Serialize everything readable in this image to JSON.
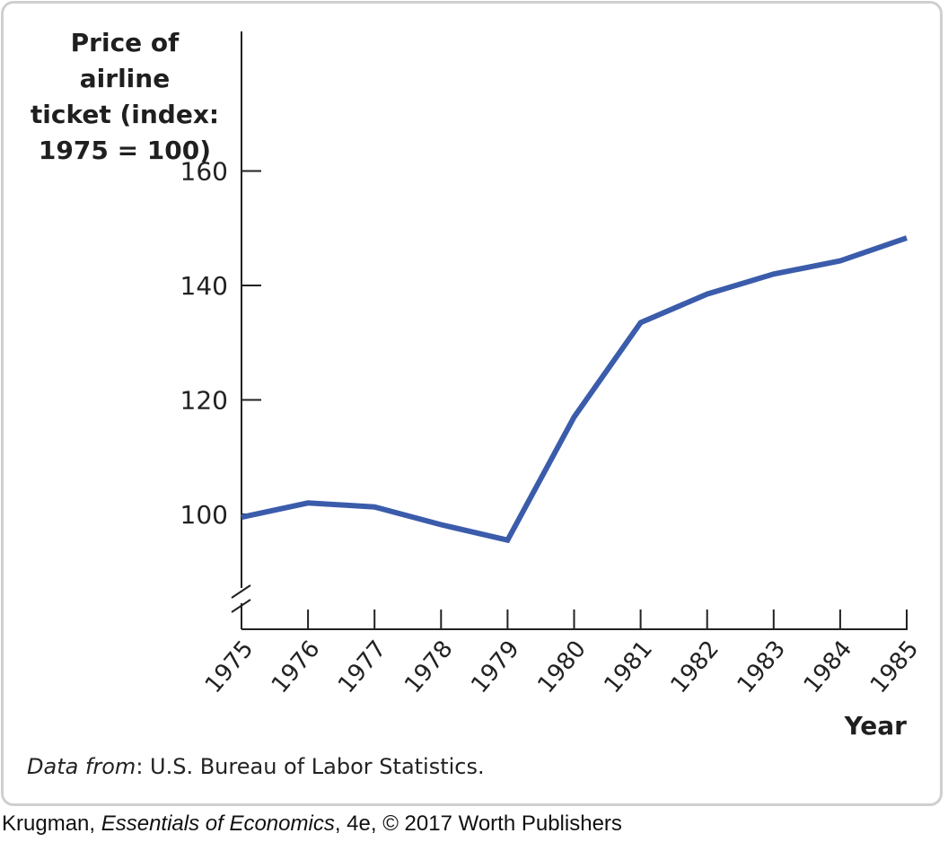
{
  "chart_data": {
    "type": "line",
    "title": "",
    "ylabel_lines": [
      "Price of airline",
      "ticket (index:",
      "1975 = 100)"
    ],
    "xlabel": "Year",
    "x": [
      1975,
      1976,
      1977,
      1978,
      1979,
      1980,
      1981,
      1982,
      1983,
      1984,
      1985
    ],
    "series": [
      {
        "values": [
          99.5,
          102,
          101.3,
          98.2,
          95.5,
          117,
          133.5,
          138.5,
          142,
          144.3,
          148.3
        ],
        "color": "#3b5cab"
      }
    ],
    "yticks": [
      100,
      120,
      140,
      160
    ],
    "ylim": [
      80,
      170
    ],
    "axis_break": true,
    "grid": false
  },
  "source": {
    "prefix": "Data from",
    "text": ": U.S. Bureau of Labor Statistics."
  },
  "credit": {
    "author": "Krugman, ",
    "book": "Essentials of Economics",
    "rest": ", 4e, © 2017 Worth Publishers"
  }
}
